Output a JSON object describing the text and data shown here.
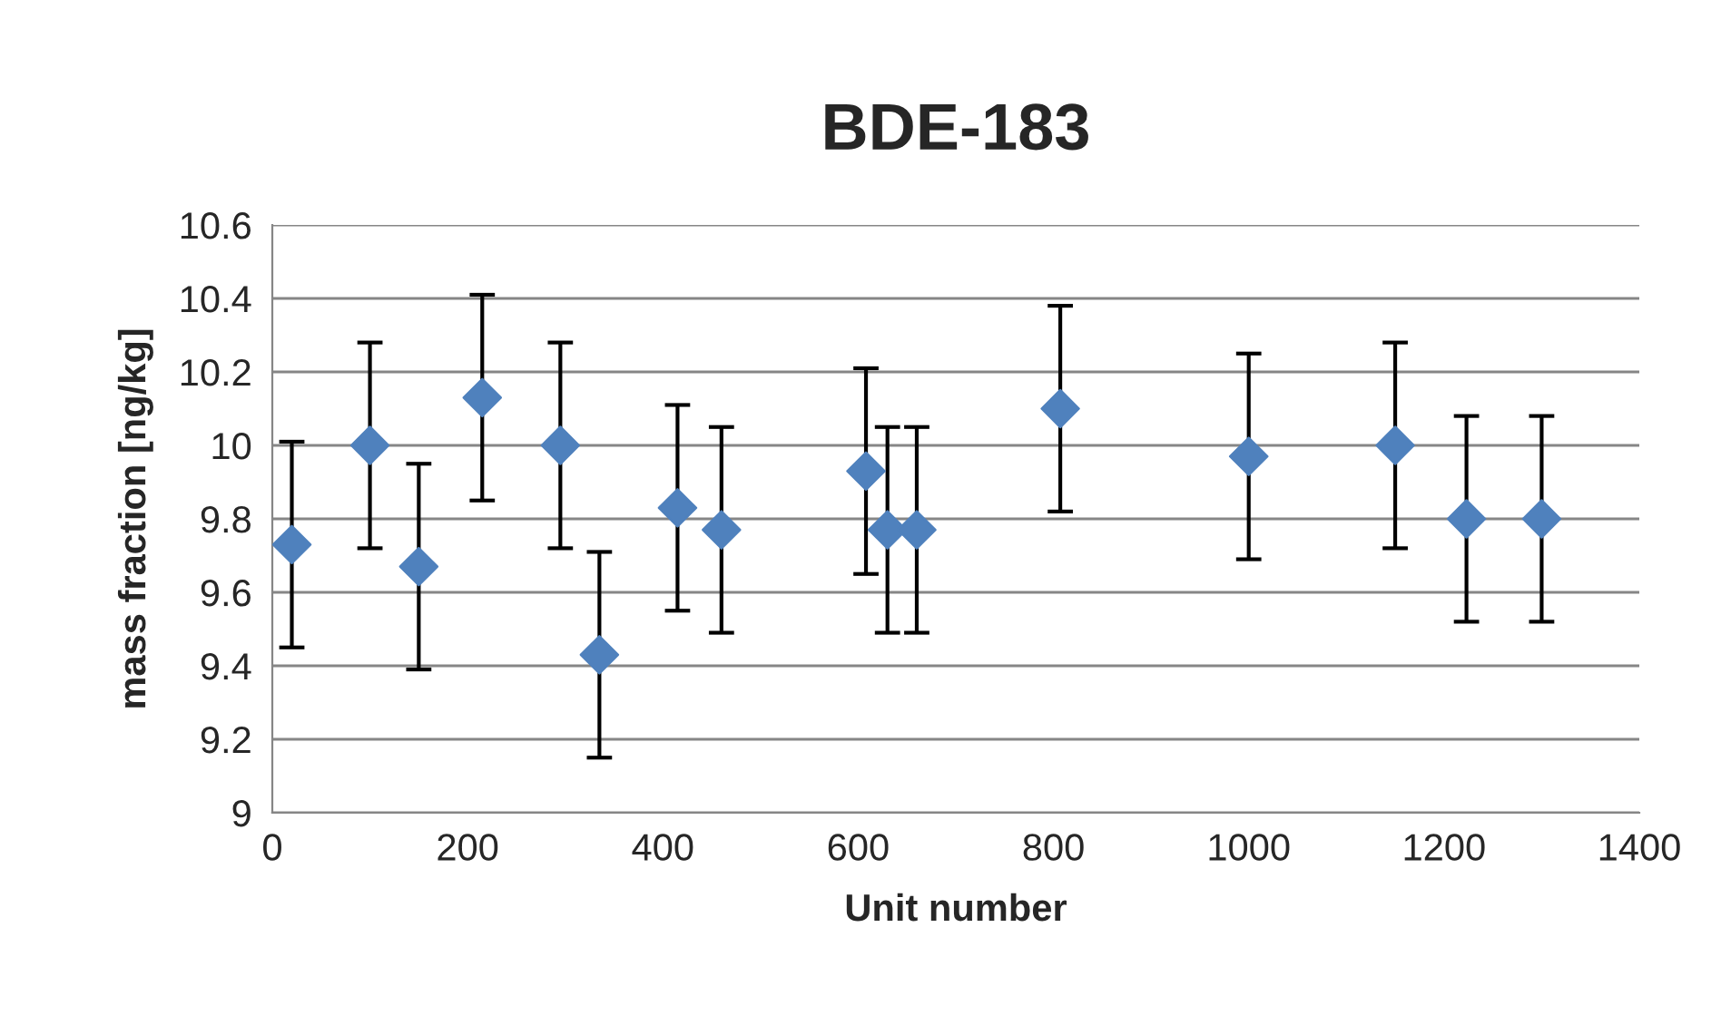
{
  "chart_data": {
    "type": "scatter",
    "title": "BDE-183",
    "xlabel": "Unit number",
    "ylabel": "mass fraction [ng/kg]",
    "x": [
      20,
      100,
      150,
      215,
      295,
      335,
      415,
      460,
      608,
      630,
      660,
      807,
      1000,
      1150,
      1223,
      1300
    ],
    "series": [
      {
        "color": "#4f81bd",
        "values": [
          9.73,
          10.0,
          9.67,
          10.13,
          10.0,
          9.43,
          9.83,
          9.77,
          9.93,
          9.77,
          9.77,
          10.1,
          9.97,
          10.0,
          9.8,
          9.8
        ],
        "errors": [
          0.28,
          0.28,
          0.28,
          0.28,
          0.28,
          0.28,
          0.28,
          0.28,
          0.28,
          0.28,
          0.28,
          0.28,
          0.28,
          0.28,
          0.28,
          0.28
        ]
      }
    ],
    "xlim": [
      0,
      1400
    ],
    "xticks": [
      0,
      200,
      400,
      600,
      800,
      1000,
      1200,
      1400
    ],
    "ylim": [
      9,
      10.6
    ],
    "yticks": [
      {
        "value": 9,
        "label": "9"
      },
      {
        "value": 9.2,
        "label": "9.2"
      },
      {
        "value": 9.4,
        "label": "9.4"
      },
      {
        "value": 9.6,
        "label": "9.6"
      },
      {
        "value": 9.8,
        "label": "9.8"
      },
      {
        "value": 10,
        "label": "10"
      },
      {
        "value": 10.2,
        "label": "10.2"
      },
      {
        "value": 10.4,
        "label": "10.4"
      },
      {
        "value": 10.6,
        "label": "10.6"
      }
    ],
    "grid": "y",
    "marker": "diamond",
    "legend": false
  }
}
